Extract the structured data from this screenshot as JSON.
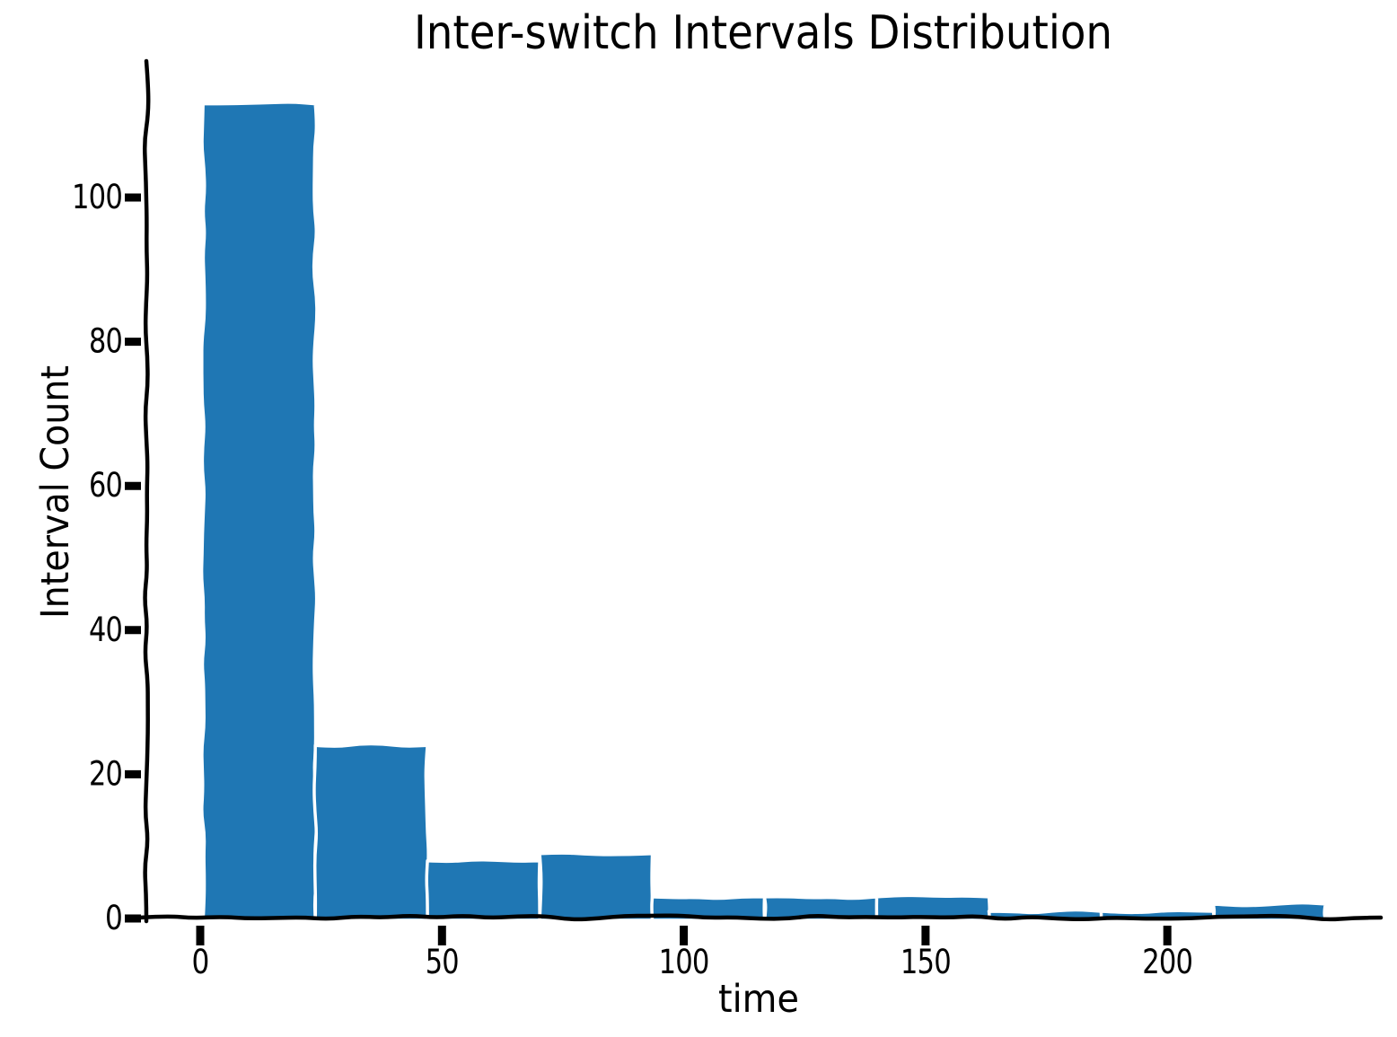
{
  "chart_data": {
    "type": "bar",
    "subtype": "histogram",
    "style": "xkcd-sketch",
    "title": "Inter-switch Intervals Distribution",
    "xlabel": "time",
    "ylabel": "Interval Count",
    "bin_edges": [
      0.6,
      23.8,
      47.0,
      70.2,
      93.5,
      116.7,
      139.9,
      163.1,
      186.3,
      209.5,
      232.7
    ],
    "counts": [
      113,
      24,
      8,
      9,
      3,
      3,
      3,
      1,
      1,
      2
    ],
    "x_ticks": [
      0,
      50,
      100,
      150,
      200
    ],
    "y_ticks": [
      0,
      20,
      40,
      60,
      80,
      100
    ],
    "xlim": [
      -11,
      244
    ],
    "ylim": [
      0,
      119
    ],
    "legend": "none",
    "grid": "off",
    "colors": {
      "bar_fill": "#1f77b4",
      "bar_edge": "#ffffff",
      "axis": "#000000",
      "text": "#000000",
      "background": "#ffffff"
    }
  }
}
